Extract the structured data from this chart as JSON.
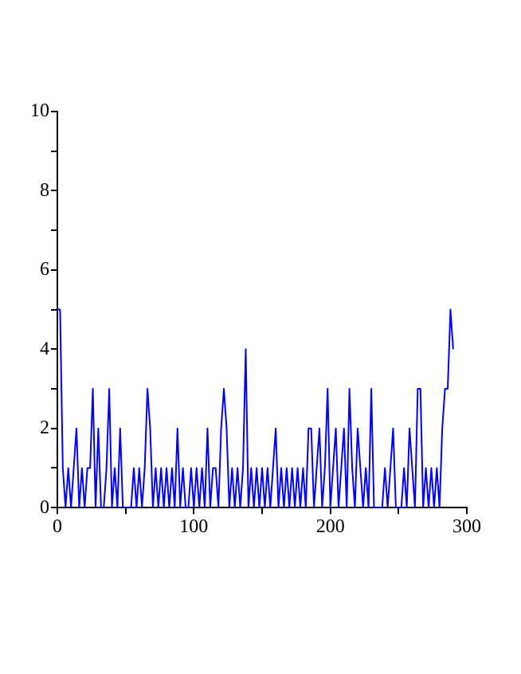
{
  "chart_data": {
    "type": "line",
    "x": [
      0,
      2,
      4,
      6,
      8,
      10,
      12,
      14,
      16,
      18,
      20,
      22,
      24,
      26,
      28,
      30,
      32,
      34,
      36,
      38,
      40,
      42,
      44,
      46,
      48,
      50,
      52,
      54,
      56,
      58,
      60,
      62,
      64,
      66,
      68,
      70,
      72,
      74,
      76,
      78,
      80,
      82,
      84,
      86,
      88,
      90,
      92,
      94,
      96,
      98,
      100,
      102,
      104,
      106,
      108,
      110,
      112,
      114,
      116,
      118,
      120,
      122,
      124,
      126,
      128,
      130,
      132,
      134,
      136,
      138,
      140,
      142,
      144,
      146,
      148,
      150,
      152,
      154,
      156,
      158,
      160,
      162,
      164,
      166,
      168,
      170,
      172,
      174,
      176,
      178,
      180,
      182,
      184,
      186,
      188,
      190,
      192,
      194,
      196,
      198,
      200,
      202,
      204,
      206,
      208,
      210,
      212,
      214,
      216,
      218,
      220,
      222,
      224,
      226,
      228,
      230,
      232,
      234,
      236,
      238,
      240,
      242,
      244,
      246,
      248,
      250,
      252,
      254,
      256,
      258,
      260,
      262,
      264,
      266,
      268,
      270,
      272,
      274,
      276,
      278,
      280,
      282,
      284,
      286,
      288,
      290
    ],
    "series": [
      {
        "color": "#0000ff",
        "values": [
          5,
          5,
          1,
          0,
          1,
          0,
          1,
          2,
          0,
          1,
          0,
          1,
          1,
          3,
          0,
          2,
          0,
          0,
          1,
          3,
          0,
          1,
          0,
          2,
          0,
          0,
          0,
          0,
          1,
          0,
          1,
          0,
          1,
          3,
          2,
          0,
          1,
          0,
          1,
          0,
          1,
          0,
          1,
          0,
          2,
          0,
          1,
          0,
          0,
          1,
          0,
          1,
          0,
          1,
          0,
          2,
          0,
          1,
          1,
          0,
          2,
          3,
          2,
          0,
          1,
          0,
          1,
          0,
          1,
          4,
          0,
          1,
          0,
          1,
          0,
          1,
          0,
          1,
          0,
          1,
          2,
          0,
          1,
          0,
          1,
          0,
          1,
          0,
          1,
          0,
          1,
          0,
          2,
          2,
          0,
          1,
          2,
          0,
          1,
          3,
          0,
          1,
          2,
          0,
          1,
          2,
          0,
          3,
          1,
          0,
          2,
          1,
          0,
          1,
          0,
          3,
          0,
          0,
          0,
          0,
          1,
          0,
          1,
          2,
          0,
          0,
          0,
          1,
          0,
          2,
          1,
          0,
          3,
          3,
          0,
          1,
          0,
          1,
          0,
          1,
          0,
          2,
          3,
          3,
          5,
          4
        ]
      }
    ],
    "xlim": [
      0,
      300
    ],
    "xticks": [
      0,
      {
        "value": 50,
        "label": null
      },
      100,
      {
        "value": 150,
        "label": null
      },
      200,
      {
        "value": 250,
        "label": null
      },
      300
    ],
    "ylim": [
      0,
      10
    ],
    "yticks": [
      0,
      {
        "value": 1,
        "label": null
      },
      2,
      {
        "value": 3,
        "label": null
      },
      4,
      {
        "value": 5,
        "label": null
      },
      6,
      {
        "value": 7,
        "label": null
      },
      8,
      {
        "value": 9,
        "label": null
      },
      10
    ],
    "legend": false,
    "marker": "none",
    "line_style": "solid"
  }
}
